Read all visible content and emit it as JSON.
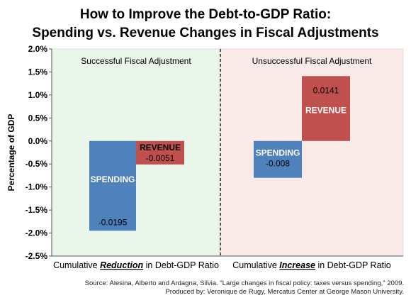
{
  "title": {
    "line1": "How to Improve the Debt-to-GDP Ratio:",
    "line2": "Spending vs. Revenue Changes  in Fiscal Adjustments"
  },
  "colors": {
    "spending": "#4f81bd",
    "revenue": "#c0504d",
    "success_bg": "#eaf6ea",
    "unsuccess_bg": "#fbeaea",
    "axis": "#555555"
  },
  "chart_data": {
    "type": "bar",
    "ylabel": "Percentage of GDP",
    "ylim": [
      -0.025,
      0.02
    ],
    "yticks": [
      0.02,
      0.015,
      0.01,
      0.005,
      0.0,
      -0.005,
      -0.01,
      -0.015,
      -0.02,
      -0.025
    ],
    "ytick_labels": [
      "2.0%",
      "1.5%",
      "1.0%",
      "0.5%",
      "0.0%",
      "-0.5%",
      "-1.0%",
      "-1.5%",
      "-2.0%",
      "-2.5%"
    ],
    "grid": false,
    "groups": [
      {
        "region_label": "Successful Fiscal Adjustment",
        "category_parts": [
          "Cumulative ",
          "Reduction",
          " in Debt-GDP Ratio"
        ],
        "bars": [
          {
            "name": "SPENDING",
            "value": -0.0195,
            "value_label": "-0.0195",
            "color": "#4f81bd"
          },
          {
            "name": "REVENUE",
            "value": -0.0051,
            "value_label": "-0.0051",
            "color": "#c0504d"
          }
        ]
      },
      {
        "region_label": "Unsuccessful Fiscal Adjustment",
        "category_parts": [
          "Cumulative ",
          "Increase",
          " in Debt-GDP Ratio"
        ],
        "bars": [
          {
            "name": "SPENDING",
            "value": -0.008,
            "value_label": "-0.008",
            "color": "#4f81bd"
          },
          {
            "name": "REVENUE",
            "value": 0.0141,
            "value_label": "0.0141",
            "color": "#c0504d"
          }
        ]
      }
    ]
  },
  "source": {
    "line1": "Source: Alesina, Alberto and Ardagna, Silvia. \"Large changes in fiscal policy: taxes versus spending,\" 2009.",
    "line2": "Produced by: Veronique de Rugy, Mercatus Center at George Mason University."
  }
}
